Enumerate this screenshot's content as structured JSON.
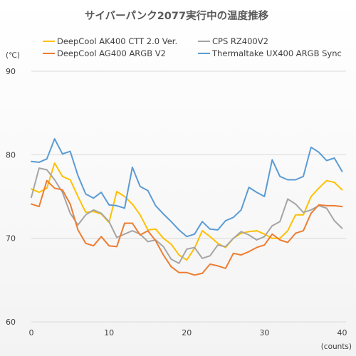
{
  "chart_data": {
    "type": "line",
    "title": "サイバーパンク2077実行中の温度推移",
    "ylabel": "(℃)",
    "xlabel": "(counts)",
    "xlim": [
      0,
      40.5
    ],
    "ylim": [
      60,
      90
    ],
    "x_ticks": [
      0,
      10,
      20,
      30,
      40
    ],
    "y_ticks": [
      60,
      70,
      80,
      90
    ],
    "grid": "horizontal",
    "legend_position": "top",
    "x": [
      0,
      1,
      2,
      3,
      4,
      5,
      6,
      7,
      8,
      9,
      10,
      11,
      12,
      13,
      14,
      15,
      16,
      17,
      18,
      19,
      20,
      21,
      22,
      23,
      24,
      25,
      26,
      27,
      28,
      29,
      30,
      31,
      32,
      33,
      34,
      35,
      36,
      37,
      38,
      39,
      40
    ],
    "series": [
      {
        "name": "DeepCool AK400 CTT 2.0 Ver.",
        "color": "#ffc000",
        "values": [
          75.9,
          75.5,
          76.0,
          79.0,
          77.4,
          77.0,
          75.0,
          73.1,
          73.2,
          72.9,
          71.9,
          75.6,
          75.0,
          74.1,
          72.8,
          71.0,
          71.1,
          70.0,
          69.3,
          68.0,
          67.4,
          68.8,
          70.9,
          70.2,
          69.4,
          68.9,
          70.0,
          70.6,
          70.8,
          70.9,
          70.5,
          70.0,
          70.0,
          70.9,
          72.8,
          72.8,
          75.0,
          76.0,
          76.9,
          76.7,
          75.8
        ]
      },
      {
        "name": "CPS RZ400V2",
        "color": "#a5a5a5",
        "values": [
          74.9,
          78.4,
          78.2,
          77.0,
          75.5,
          73.0,
          71.6,
          72.8,
          73.4,
          73.0,
          72.0,
          70.1,
          70.5,
          70.9,
          70.5,
          69.6,
          69.8,
          69.0,
          67.5,
          67.0,
          68.7,
          68.9,
          67.6,
          67.9,
          69.2,
          69.0,
          70.0,
          70.8,
          70.4,
          69.8,
          70.2,
          71.5,
          72.0,
          74.7,
          74.1,
          73.1,
          73.4,
          73.9,
          73.6,
          72.1,
          71.2
        ]
      },
      {
        "name": "DeepCool  AG400 ARGB V2",
        "color": "#ed7d31",
        "values": [
          74.1,
          73.8,
          76.9,
          76.0,
          75.8,
          74.1,
          71.0,
          69.4,
          69.1,
          70.2,
          69.1,
          69.0,
          71.8,
          71.8,
          70.4,
          70.9,
          69.7,
          68.0,
          66.6,
          65.9,
          65.9,
          65.6,
          65.8,
          66.9,
          66.7,
          66.4,
          68.2,
          68.0,
          68.4,
          68.9,
          69.2,
          70.5,
          69.8,
          69.5,
          70.6,
          70.9,
          73.0,
          74.0,
          73.9,
          73.9,
          73.8
        ]
      },
      {
        "name": "Thermaltake UX400 ARGB Sync",
        "color": "#5b9bd5",
        "values": [
          79.2,
          79.1,
          79.5,
          81.9,
          80.1,
          80.4,
          77.5,
          75.3,
          74.8,
          75.5,
          74.0,
          73.9,
          73.6,
          78.5,
          76.2,
          75.7,
          73.9,
          72.9,
          72.0,
          71.0,
          70.2,
          70.5,
          72.0,
          71.1,
          71.0,
          72.1,
          72.5,
          73.4,
          76.1,
          75.5,
          75.0,
          79.4,
          77.4,
          77.0,
          77.0,
          77.4,
          80.9,
          80.3,
          79.3,
          79.6,
          78.0
        ]
      }
    ]
  }
}
